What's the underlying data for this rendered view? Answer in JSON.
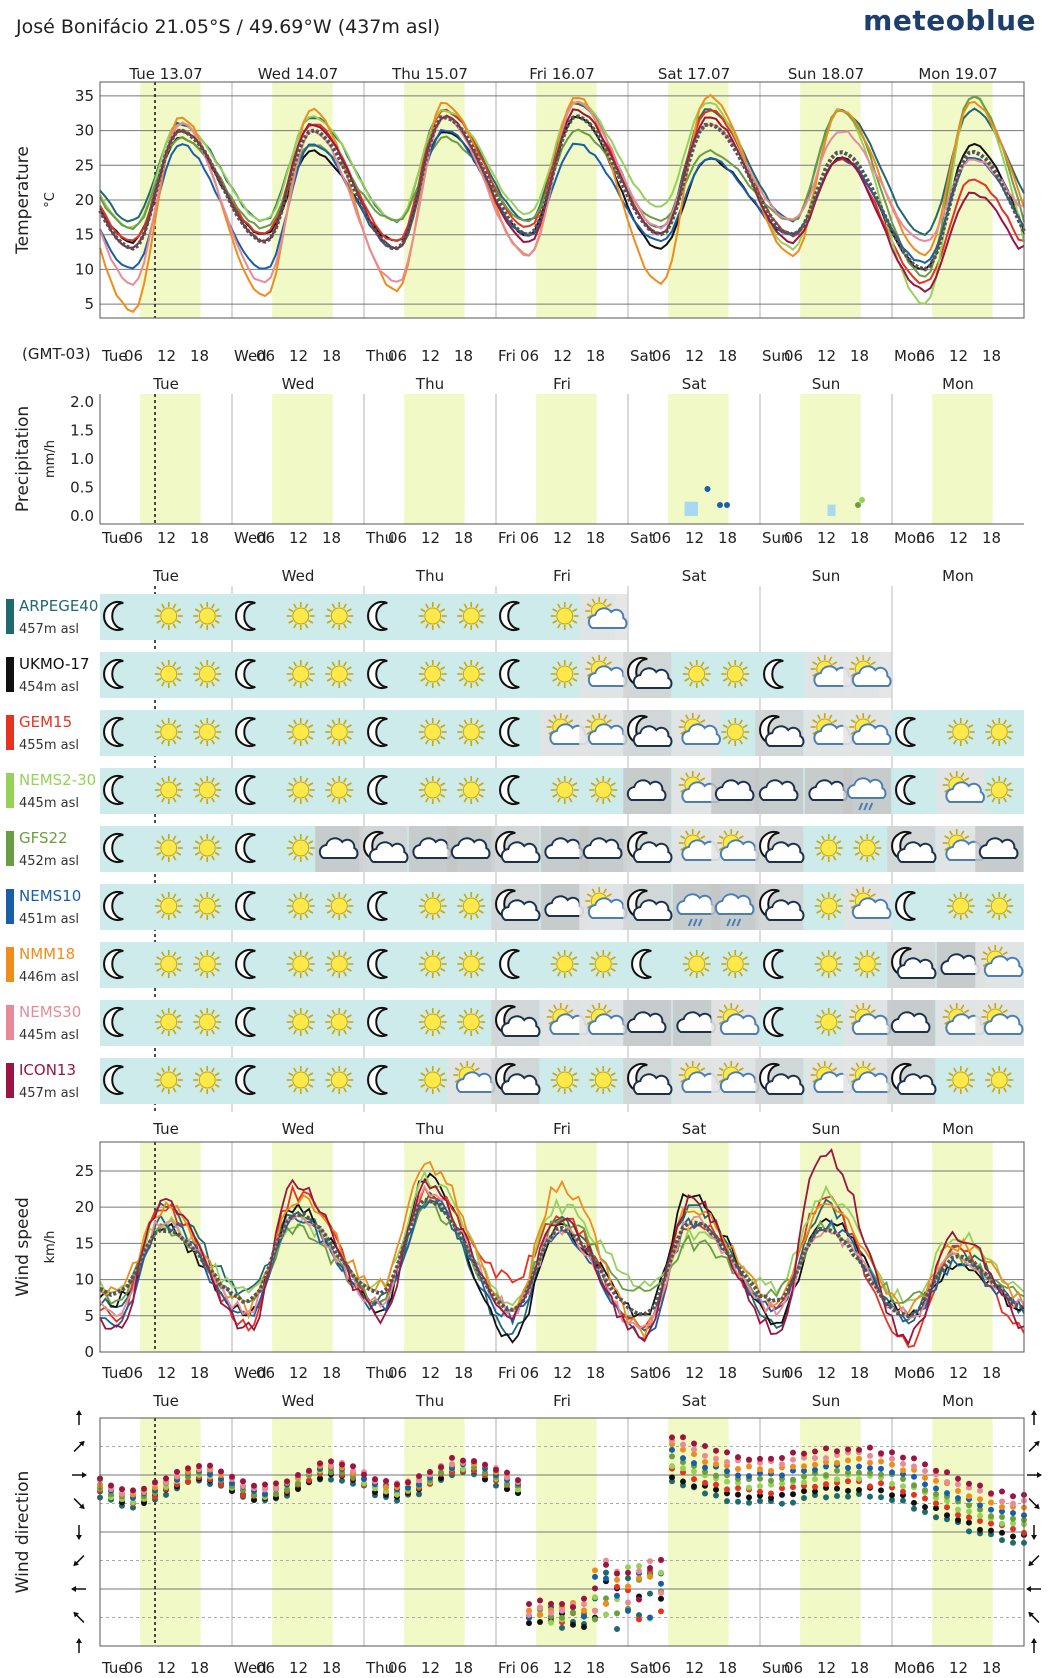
{
  "header": {
    "title": "José Bonifácio  21.05°S / 49.69°W (437m asl)",
    "brand": "meteoblue",
    "timezone": "(GMT-03)"
  },
  "days_full": [
    "Tue 13.07",
    "Wed 14.07",
    "Thu 15.07",
    "Fri 16.07",
    "Sat 17.07",
    "Sun 18.07",
    "Mon 19.07"
  ],
  "days_short": [
    "Tue",
    "Wed",
    "Thu",
    "Fri",
    "Sat",
    "Sun",
    "Mon"
  ],
  "hour_ticks": [
    "06",
    "12",
    "18"
  ],
  "colors": {
    "daylight": "#f1f9c7",
    "model_bg": "#cdebeb",
    "grid": "#999999",
    "mean": "#555555"
  },
  "models": [
    {
      "name": "ARPEGE40",
      "elev": "457m asl",
      "color": "#1f6a6f"
    },
    {
      "name": "UKMO-17",
      "elev": "454m asl",
      "color": "#111111"
    },
    {
      "name": "GEM15",
      "elev": "455m asl",
      "color": "#e5331f"
    },
    {
      "name": "NEMS2-30",
      "elev": "445m asl",
      "color": "#96d158"
    },
    {
      "name": "GFS22",
      "elev": "452m asl",
      "color": "#6a9e40"
    },
    {
      "name": "NEMS10",
      "elev": "451m asl",
      "color": "#1a5ea8"
    },
    {
      "name": "NMM18",
      "elev": "446m asl",
      "color": "#f08c1a"
    },
    {
      "name": "NEMS30",
      "elev": "445m asl",
      "color": "#e88a9a"
    },
    {
      "name": "ICON13",
      "elev": "457m asl",
      "color": "#9c1440"
    }
  ],
  "chart_data": [
    {
      "type": "line",
      "title": "Temperature",
      "ylabel": "Temperature",
      "unit": "°C",
      "ylim": [
        3,
        37
      ],
      "yticks": [
        5,
        10,
        15,
        20,
        25,
        30,
        35
      ],
      "grid": true,
      "x_desc": "hours from Tue 00:00 (GMT-03)",
      "series": [
        {
          "name": "ARPEGE40",
          "tmin": [
            17,
            17,
            17,
            17,
            16,
            17,
            15
          ],
          "tmax": [
            31,
            32,
            33,
            34,
            33,
            33,
            33
          ]
        },
        {
          "name": "UKMO-17",
          "tmin": [
            14,
            15,
            14,
            15,
            13,
            15,
            10
          ],
          "tmax": [
            29,
            27,
            30,
            32,
            26,
            26,
            28
          ]
        },
        {
          "name": "GEM15",
          "tmin": [
            14,
            15,
            14,
            16,
            15,
            15,
            8
          ],
          "tmax": [
            30,
            31,
            33,
            34,
            33,
            26,
            23
          ]
        },
        {
          "name": "NEMS2-30",
          "tmin": [
            16,
            17,
            17,
            18,
            19,
            13,
            5
          ],
          "tmax": [
            31,
            32,
            33,
            34,
            34,
            33,
            35
          ]
        },
        {
          "name": "GFS22",
          "tmin": [
            16,
            16,
            17,
            17,
            17,
            17,
            9
          ],
          "tmax": [
            29,
            28,
            29,
            30,
            27,
            33,
            35
          ]
        },
        {
          "name": "NEMS10",
          "tmin": [
            10,
            10,
            13,
            15,
            14,
            15,
            11
          ],
          "tmax": [
            28,
            28,
            30,
            28,
            26,
            26,
            26
          ]
        },
        {
          "name": "NMM18",
          "tmin": [
            4,
            6,
            7,
            12,
            8,
            12,
            12
          ],
          "tmax": [
            32,
            33,
            34,
            35,
            35,
            33,
            34
          ]
        },
        {
          "name": "NEMS30",
          "tmin": [
            8,
            8,
            8,
            12,
            16,
            17,
            14
          ],
          "tmax": [
            31,
            30,
            32,
            34,
            31,
            30,
            26
          ]
        },
        {
          "name": "ICON13",
          "tmin": [
            13,
            14,
            13,
            14,
            15,
            14,
            7
          ],
          "tmax": [
            30,
            31,
            32,
            33,
            32,
            26,
            21
          ]
        },
        {
          "name": "Mean",
          "tmin": [
            13,
            14,
            13,
            15,
            15,
            15,
            10
          ],
          "tmax": [
            30,
            30,
            32,
            32,
            31,
            27,
            27
          ]
        }
      ]
    },
    {
      "type": "bar",
      "title": "Precipitation",
      "ylabel": "Precipitation",
      "unit": "mm/h",
      "ylim": [
        0,
        2.2
      ],
      "yticks": [
        "2.0",
        "1.5",
        "1.0",
        "0.5",
        "0.0"
      ],
      "bars": [
        {
          "x": 107,
          "value": 0.25
        },
        {
          "x": 108,
          "value": 0.25
        },
        {
          "x": 133,
          "value": 0.2
        }
      ]
    },
    {
      "type": "line",
      "title": "Wind speed",
      "ylabel": "Wind speed",
      "unit": "km/h",
      "ylim": [
        0,
        29
      ],
      "yticks": [
        0,
        5,
        10,
        15,
        20,
        25
      ],
      "series": [
        {
          "name": "ARPEGE40",
          "dmin": [
            6,
            8,
            7,
            3,
            3,
            4,
            5
          ],
          "dmax": [
            20,
            19,
            21,
            18,
            20,
            20,
            14
          ]
        },
        {
          "name": "UKMO-17",
          "dmin": [
            7,
            5,
            6,
            2,
            5,
            4,
            5
          ],
          "dmax": [
            17,
            20,
            24,
            17,
            22,
            19,
            12
          ]
        },
        {
          "name": "GEM15",
          "dmin": [
            5,
            4,
            7,
            10,
            3,
            6,
            1
          ],
          "dmax": [
            20,
            22,
            22,
            19,
            18,
            21,
            14
          ]
        },
        {
          "name": "NEMS2-30",
          "dmin": [
            8,
            8,
            9,
            7,
            9,
            9,
            7
          ],
          "dmax": [
            18,
            18,
            24,
            20,
            16,
            22,
            16
          ]
        },
        {
          "name": "GFS22",
          "dmin": [
            7,
            7,
            7,
            6,
            8,
            8,
            7
          ],
          "dmax": [
            17,
            17,
            20,
            18,
            15,
            17,
            13
          ]
        },
        {
          "name": "NEMS10",
          "dmin": [
            4,
            5,
            6,
            5,
            2,
            6,
            5
          ],
          "dmax": [
            18,
            18,
            21,
            17,
            18,
            18,
            12
          ]
        },
        {
          "name": "NMM18",
          "dmin": [
            8,
            6,
            9,
            6,
            3,
            7,
            6
          ],
          "dmax": [
            20,
            21,
            26,
            23,
            20,
            20,
            15
          ]
        },
        {
          "name": "NEMS30",
          "dmin": [
            6,
            6,
            7,
            6,
            3,
            6,
            5
          ],
          "dmax": [
            18,
            19,
            22,
            17,
            18,
            17,
            13
          ]
        },
        {
          "name": "ICON13",
          "dmin": [
            3,
            3,
            5,
            5,
            2,
            3,
            2
          ],
          "dmax": [
            21,
            23,
            23,
            18,
            21,
            28,
            16
          ]
        },
        {
          "name": "Mean",
          "dmin": [
            8,
            7,
            8,
            6,
            5,
            7,
            5
          ],
          "dmax": [
            17,
            19,
            21,
            17,
            18,
            17,
            13
          ]
        }
      ]
    },
    {
      "type": "scatter",
      "title": "Wind direction",
      "ylabel": "Wind direction",
      "ylim": [
        0,
        360
      ],
      "series_desc": "dots per model, wind direction in degrees",
      "segments": [
        {
          "days": [
            0,
            3.2
          ],
          "dir": [
            250,
            205
          ]
        },
        {
          "days": [
            3.2,
            4.3
          ],
          "dir": [
            30,
            290
          ]
        },
        {
          "days": [
            4.3,
            7
          ],
          "dir": [
            270,
            215
          ]
        }
      ]
    }
  ],
  "symbol_rows": [
    {
      "model": "ARPEGE40",
      "end_day": 3.9,
      "codes": "MSSMSSMSSMSP"
    },
    {
      "model": "UKMO-17",
      "end_day": 5.9,
      "codes": "MSSMSSMSSMSPNSSMPP"
    },
    {
      "model": "GEM15",
      "end_day": 7,
      "codes": "MSSMSSMSSMPPNPSNPPMSS"
    },
    {
      "model": "NEMS2-30",
      "end_day": 7,
      "codes": "MSSMSSMSSMSSCPCCCRMPS"
    },
    {
      "model": "GFS22",
      "end_day": 7,
      "codes": "MSSMSCNCCNCCNPPNSSNPC"
    },
    {
      "model": "NEMS10",
      "end_day": 7,
      "codes": "MSSMSSMSSNCPNRRNSPMSS"
    },
    {
      "model": "NMM18",
      "end_day": 7,
      "codes": "MSSMSSMSSMSSMSSMSSNCP"
    },
    {
      "model": "NEMS30",
      "end_day": 7,
      "codes": "MSSMSSMSSNPPCCPMSPCPP"
    },
    {
      "model": "ICON13",
      "end_day": 7,
      "codes": "MSSMSSMSPNSSNPPNPPNSS"
    }
  ]
}
